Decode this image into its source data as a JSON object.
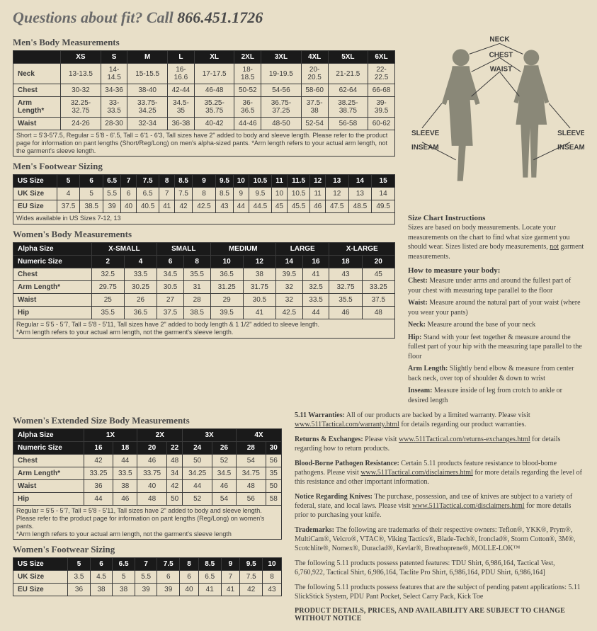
{
  "heading": {
    "text": "Questions about fit? Call ",
    "phone": "866.451.1726"
  },
  "mens_body": {
    "title": "Men's Body Measurements",
    "sizes": [
      "XS",
      "S",
      "M",
      "L",
      "XL",
      "2XL",
      "3XL",
      "4XL",
      "5XL",
      "6XL"
    ],
    "rows": [
      {
        "label": "Neck",
        "v": [
          "13-13.5",
          "14-14.5",
          "15-15.5",
          "16-16.6",
          "17-17.5",
          "18-18.5",
          "19-19.5",
          "20-20.5",
          "21-21.5",
          "22-22.5"
        ]
      },
      {
        "label": "Chest",
        "v": [
          "30-32",
          "34-36",
          "38-40",
          "42-44",
          "46-48",
          "50-52",
          "54-56",
          "58-60",
          "62-64",
          "66-68"
        ]
      },
      {
        "label": "Arm Length*",
        "v": [
          "32.25-32.75",
          "33-33.5",
          "33.75-34.25",
          "34.5-35",
          "35.25-35.75",
          "36-36.5",
          "36.75-37.25",
          "37.5-38",
          "38.25-38.75",
          "39-39.5"
        ]
      },
      {
        "label": "Waist",
        "v": [
          "24-26",
          "28-30",
          "32-34",
          "36-38",
          "40-42",
          "44-46",
          "48-50",
          "52-54",
          "56-58",
          "60-62"
        ]
      }
    ],
    "note": "Short = 5'3-5'7.5, Regular = 5'8 - 6'.5, Tall = 6'1 - 6'3, Tall sizes have 2\" added to body and sleeve length. Please refer to the product page for information on pant lengths (Short/Reg/Long) on men's alpha-sized pants.  *Arm length refers to your actual arm length, not the garment's sleeve length."
  },
  "mens_foot": {
    "title": "Men's Footwear Sizing",
    "headers": [
      "US Size",
      "5",
      "6",
      "6.5",
      "7",
      "7.5",
      "8",
      "8.5",
      "9",
      "9.5",
      "10",
      "10.5",
      "11",
      "11.5",
      "12",
      "13",
      "14",
      "15"
    ],
    "rows": [
      {
        "label": "UK Size",
        "v": [
          "4",
          "5",
          "5.5",
          "6",
          "6.5",
          "7",
          "7.5",
          "8",
          "8.5",
          "9",
          "9.5",
          "10",
          "10.5",
          "11",
          "12",
          "13",
          "14"
        ]
      },
      {
        "label": "EU Size",
        "v": [
          "37.5",
          "38.5",
          "39",
          "40",
          "40.5",
          "41",
          "42",
          "42.5",
          "43",
          "44",
          "44.5",
          "45",
          "45.5",
          "46",
          "47.5",
          "48.5",
          "49.5"
        ]
      }
    ],
    "note": "Wides available in US Sizes 7-12, 13"
  },
  "womens_body": {
    "title": "Women's Body Measurements",
    "alpha_label": "Alpha Size",
    "alpha": [
      "X-SMALL",
      "SMALL",
      "MEDIUM",
      "LARGE",
      "X-LARGE"
    ],
    "num_label": "Numeric Size",
    "numeric": [
      "2",
      "4",
      "6",
      "8",
      "10",
      "12",
      "14",
      "16",
      "18",
      "20"
    ],
    "rows": [
      {
        "label": "Chest",
        "v": [
          "32.5",
          "33.5",
          "34.5",
          "35.5",
          "36.5",
          "38",
          "39.5",
          "41",
          "43",
          "45"
        ]
      },
      {
        "label": "Arm Length*",
        "v": [
          "29.75",
          "30.25",
          "30.5",
          "31",
          "31.25",
          "31.75",
          "32",
          "32.5",
          "32.75",
          "33.25"
        ]
      },
      {
        "label": "Waist",
        "v": [
          "25",
          "26",
          "27",
          "28",
          "29",
          "30.5",
          "32",
          "33.5",
          "35.5",
          "37.5"
        ]
      },
      {
        "label": "Hip",
        "v": [
          "35.5",
          "36.5",
          "37.5",
          "38.5",
          "39.5",
          "41",
          "42.5",
          "44",
          "46",
          "48"
        ]
      }
    ],
    "note": "Regular = 5'5 - 5'7, Tall = 5'8 - 5'11, Tall sizes have 2\" added to body length & 1 1/2\" added to sleeve length.\n*Arm length refers to your actual arm length, not the garment's sleeve length."
  },
  "womens_ext": {
    "title": "Women's Extended Size Body Measurements",
    "alpha_label": "Alpha Size",
    "alpha": [
      "1X",
      "2X",
      "3X",
      "4X"
    ],
    "num_label": "Numeric Size",
    "numeric": [
      "16",
      "18",
      "20",
      "22",
      "24",
      "26",
      "28",
      "30"
    ],
    "rows": [
      {
        "label": "Chest",
        "v": [
          "42",
          "44",
          "46",
          "48",
          "50",
          "52",
          "54",
          "56"
        ]
      },
      {
        "label": "Arm Length*",
        "v": [
          "33.25",
          "33.5",
          "33.75",
          "34",
          "34.25",
          "34.5",
          "34.75",
          "35"
        ]
      },
      {
        "label": "Waist",
        "v": [
          "36",
          "38",
          "40",
          "42",
          "44",
          "46",
          "48",
          "50"
        ]
      },
      {
        "label": "Hip",
        "v": [
          "44",
          "46",
          "48",
          "50",
          "52",
          "54",
          "56",
          "58"
        ]
      }
    ],
    "note": "Regular = 5'5 - 5'7, Tall = 5'8 - 5'11, Tall sizes have 2\" added to body and sleeve length. Please refer to the product page for information on pant lengths (Reg/Long) on women's pants.\n*Arm length refers to your actual arm length, not the garment's sleeve length"
  },
  "womens_foot": {
    "title": "Women's Footwear Sizing",
    "headers": [
      "US Size",
      "5",
      "6",
      "6.5",
      "7",
      "7.5",
      "8",
      "8.5",
      "9",
      "9.5",
      "10"
    ],
    "rows": [
      {
        "label": "UK Size",
        "v": [
          "3.5",
          "4.5",
          "5",
          "5.5",
          "6",
          "6",
          "6.5",
          "7",
          "7.5",
          "8"
        ]
      },
      {
        "label": "EU Size",
        "v": [
          "36",
          "38",
          "38",
          "39",
          "39",
          "40",
          "41",
          "41",
          "42",
          "43"
        ]
      }
    ]
  },
  "figure_labels": {
    "neck": "NECK",
    "chest": "CHEST",
    "waist": "WAIST",
    "sleeve": "SLEEVE",
    "inseam": "INSEAM"
  },
  "instructions": {
    "head": "Size Chart Instructions",
    "intro": "Sizes are based on body measurements. Locate your measurements on the chart to find what size garment you should wear. Sizes listed are body measurements, not garment measurements.",
    "howto_head": "How to measure your body:",
    "items": [
      {
        "k": "Chest:",
        "t": "Measure under arms and around the fullest part of your chest with measuring tape parallel to the floor"
      },
      {
        "k": "Waist:",
        "t": "Measure around the natural part of your waist (where you wear your pants)"
      },
      {
        "k": "Neck:",
        "t": "Measure around the base of your neck"
      },
      {
        "k": "Hip:",
        "t": "Stand with your feet together & measure around the fullest part of your hip with the measuring tape parallel to the floor"
      },
      {
        "k": "Arm Length:",
        "t": "Slightly bend elbow & measure from center back neck, over top of shoulder & down to wrist"
      },
      {
        "k": "Inseam:",
        "t": "Measure inside of leg from crotch to ankle or desired length"
      }
    ]
  },
  "info": [
    {
      "b": "5.11 Warranties:",
      "t": " All of our products are backed by a limited warranty. Please visit ",
      "u": "www.511Tactical.com/warranty.html",
      "t2": " for details regarding our product warranties."
    },
    {
      "b": "Returns & Exchanges:",
      "t": " Please visit ",
      "u": "www.511Tactical.com/returns-exchanges.html",
      "t2": " for details regarding how to return products."
    },
    {
      "b": "Blood-Borne Pathogen Resistance:",
      "t": " Certain 5.11 products feature resistance to blood-borne pathogens. Please visit ",
      "u": "www.511Tactical.com/disclaimers.html",
      "t2": " for more details regarding the level of this resistance and other important information."
    },
    {
      "b": "Notice Regarding Knives:",
      "t": " The purchase, possession, and use of knives are subject to a variety of federal, state, and local laws. Please visit ",
      "u": "www.511Tactical.com/disclaimers.html",
      "t2": " for more details prior to purchasing your knife."
    },
    {
      "b": "Trademarks:",
      "t": " The following are trademarks of their respective owners: Teflon®, YKK®, Prym®, MultiCam®, Velcro®, VTAC®, Viking Tactics®, Blade-Tech®, Ironclad®, Storm Cotton®, 3M®, Scotchlite®, Nomex®, Duraclad®, Kevlar®, Breathoprene®, MOLLE-LOK™",
      "u": "",
      "t2": ""
    }
  ],
  "patented": "The following 5.11 products possess patented features: TDU Shirt, 6,986,164, Tactical Vest, 6,760,922, Tactical Shirt, 6,986,164, Taclite Pro Shirt, 6,986,164, PDU Shirt, 6,986,164]",
  "pending": "The following 5.11 products possess features that are the subject of pending patent applications: 5.11 SlickStick System, PDU Pant Pocket, Select Carry Pack, Kick Toe",
  "final": "PRODUCT DETAILS, PRICES, AND AVAILABILITY ARE SUBJECT TO CHANGE WITHOUT NOTICE"
}
